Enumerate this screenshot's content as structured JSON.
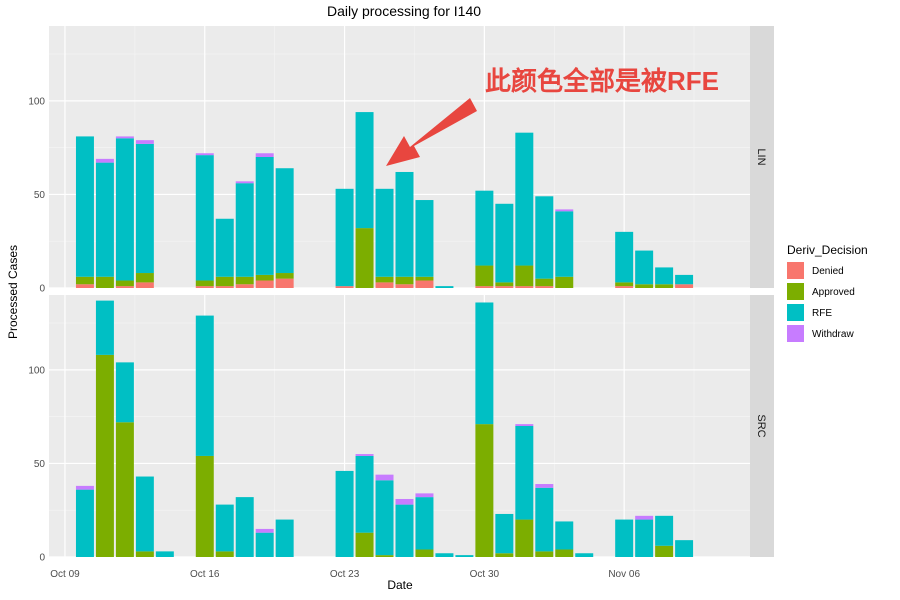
{
  "chart_data": {
    "type": "bar",
    "stacked": true,
    "title": "Daily processing for I140",
    "xlabel": "Date",
    "ylabel": "Processed Cases",
    "ylim": [
      0,
      140
    ],
    "y_ticks": [
      0,
      50,
      100
    ],
    "x_ticks": [
      {
        "day": 0,
        "label": "Oct 09"
      },
      {
        "day": 7,
        "label": "Oct 16"
      },
      {
        "day": 14,
        "label": "Oct 23"
      },
      {
        "day": 21,
        "label": "Oct 30"
      },
      {
        "day": 28,
        "label": "Nov 06"
      }
    ],
    "x_range_days": [
      -0.8,
      34.3
    ],
    "grid": true,
    "legend": {
      "title": "Deriv_Decision",
      "placement": "right"
    },
    "series": [
      {
        "name": "Denied",
        "color": "#f8766d"
      },
      {
        "name": "Approved",
        "color": "#7cae00"
      },
      {
        "name": "RFE",
        "color": "#00bfc4"
      },
      {
        "name": "Withdraw",
        "color": "#c77cff"
      }
    ],
    "panels": [
      {
        "label": "LIN",
        "bars": [
          {
            "day": 1,
            "values": [
              2,
              4,
              75,
              0
            ]
          },
          {
            "day": 2,
            "values": [
              0,
              6,
              61,
              2
            ]
          },
          {
            "day": 3,
            "values": [
              1,
              3,
              76,
              1
            ]
          },
          {
            "day": 4,
            "values": [
              3,
              5,
              69,
              2
            ]
          },
          {
            "day": 7,
            "values": [
              1,
              3,
              67,
              1
            ]
          },
          {
            "day": 8,
            "values": [
              1,
              5,
              31,
              0
            ]
          },
          {
            "day": 9,
            "values": [
              2,
              4,
              50,
              1
            ]
          },
          {
            "day": 10,
            "values": [
              4,
              3,
              63,
              2
            ]
          },
          {
            "day": 11,
            "values": [
              5,
              3,
              56,
              0
            ]
          },
          {
            "day": 14,
            "values": [
              1,
              0,
              52,
              0
            ]
          },
          {
            "day": 15,
            "values": [
              0,
              32,
              62,
              0
            ]
          },
          {
            "day": 16,
            "values": [
              3,
              3,
              47,
              0
            ]
          },
          {
            "day": 17,
            "values": [
              2,
              4,
              56,
              0
            ]
          },
          {
            "day": 18,
            "values": [
              4,
              2,
              41,
              0
            ]
          },
          {
            "day": 19,
            "values": [
              0,
              0,
              1,
              0
            ]
          },
          {
            "day": 21,
            "values": [
              1,
              11,
              40,
              0
            ]
          },
          {
            "day": 22,
            "values": [
              1,
              2,
              42,
              0
            ]
          },
          {
            "day": 23,
            "values": [
              1,
              11,
              71,
              0
            ]
          },
          {
            "day": 24,
            "values": [
              1,
              4,
              44,
              0
            ]
          },
          {
            "day": 25,
            "values": [
              0,
              6,
              35,
              1
            ]
          },
          {
            "day": 28,
            "values": [
              1,
              2,
              27,
              0
            ]
          },
          {
            "day": 29,
            "values": [
              0,
              2,
              18,
              0
            ]
          },
          {
            "day": 30,
            "values": [
              0,
              2,
              9,
              0
            ]
          },
          {
            "day": 31,
            "values": [
              2,
              0,
              5,
              0
            ]
          }
        ]
      },
      {
        "label": "SRC",
        "bars": [
          {
            "day": 1,
            "values": [
              0,
              0,
              36,
              2
            ]
          },
          {
            "day": 2,
            "values": [
              0,
              108,
              29,
              0
            ]
          },
          {
            "day": 3,
            "values": [
              0,
              72,
              32,
              0
            ]
          },
          {
            "day": 4,
            "values": [
              0,
              3,
              40,
              0
            ]
          },
          {
            "day": 5,
            "values": [
              0,
              0,
              3,
              0
            ]
          },
          {
            "day": 7,
            "values": [
              0,
              54,
              75,
              0
            ]
          },
          {
            "day": 8,
            "values": [
              0,
              3,
              25,
              0
            ]
          },
          {
            "day": 9,
            "values": [
              0,
              0,
              32,
              0
            ]
          },
          {
            "day": 10,
            "values": [
              0,
              0,
              13,
              2
            ]
          },
          {
            "day": 11,
            "values": [
              0,
              0,
              20,
              0
            ]
          },
          {
            "day": 14,
            "values": [
              0,
              0,
              46,
              0
            ]
          },
          {
            "day": 15,
            "values": [
              0,
              13,
              41,
              1
            ]
          },
          {
            "day": 16,
            "values": [
              0,
              1,
              40,
              3
            ]
          },
          {
            "day": 17,
            "values": [
              0,
              0,
              28,
              3
            ]
          },
          {
            "day": 18,
            "values": [
              0,
              4,
              28,
              2
            ]
          },
          {
            "day": 19,
            "values": [
              0,
              0,
              2,
              0
            ]
          },
          {
            "day": 20,
            "values": [
              0,
              0,
              1,
              0
            ]
          },
          {
            "day": 21,
            "values": [
              0,
              71,
              65,
              0
            ]
          },
          {
            "day": 22,
            "values": [
              0,
              2,
              21,
              0
            ]
          },
          {
            "day": 23,
            "values": [
              0,
              20,
              50,
              1
            ]
          },
          {
            "day": 24,
            "values": [
              0,
              3,
              34,
              2
            ]
          },
          {
            "day": 25,
            "values": [
              0,
              4,
              15,
              0
            ]
          },
          {
            "day": 26,
            "values": [
              0,
              0,
              2,
              0
            ]
          },
          {
            "day": 28,
            "values": [
              0,
              0,
              20,
              0
            ]
          },
          {
            "day": 29,
            "values": [
              0,
              0,
              20,
              2
            ]
          },
          {
            "day": 30,
            "values": [
              0,
              6,
              16,
              0
            ]
          },
          {
            "day": 31,
            "values": [
              0,
              0,
              9,
              0
            ]
          }
        ]
      }
    ],
    "annotation": {
      "text": "此颜色全部是被RFE",
      "color": "#e8463f"
    }
  }
}
